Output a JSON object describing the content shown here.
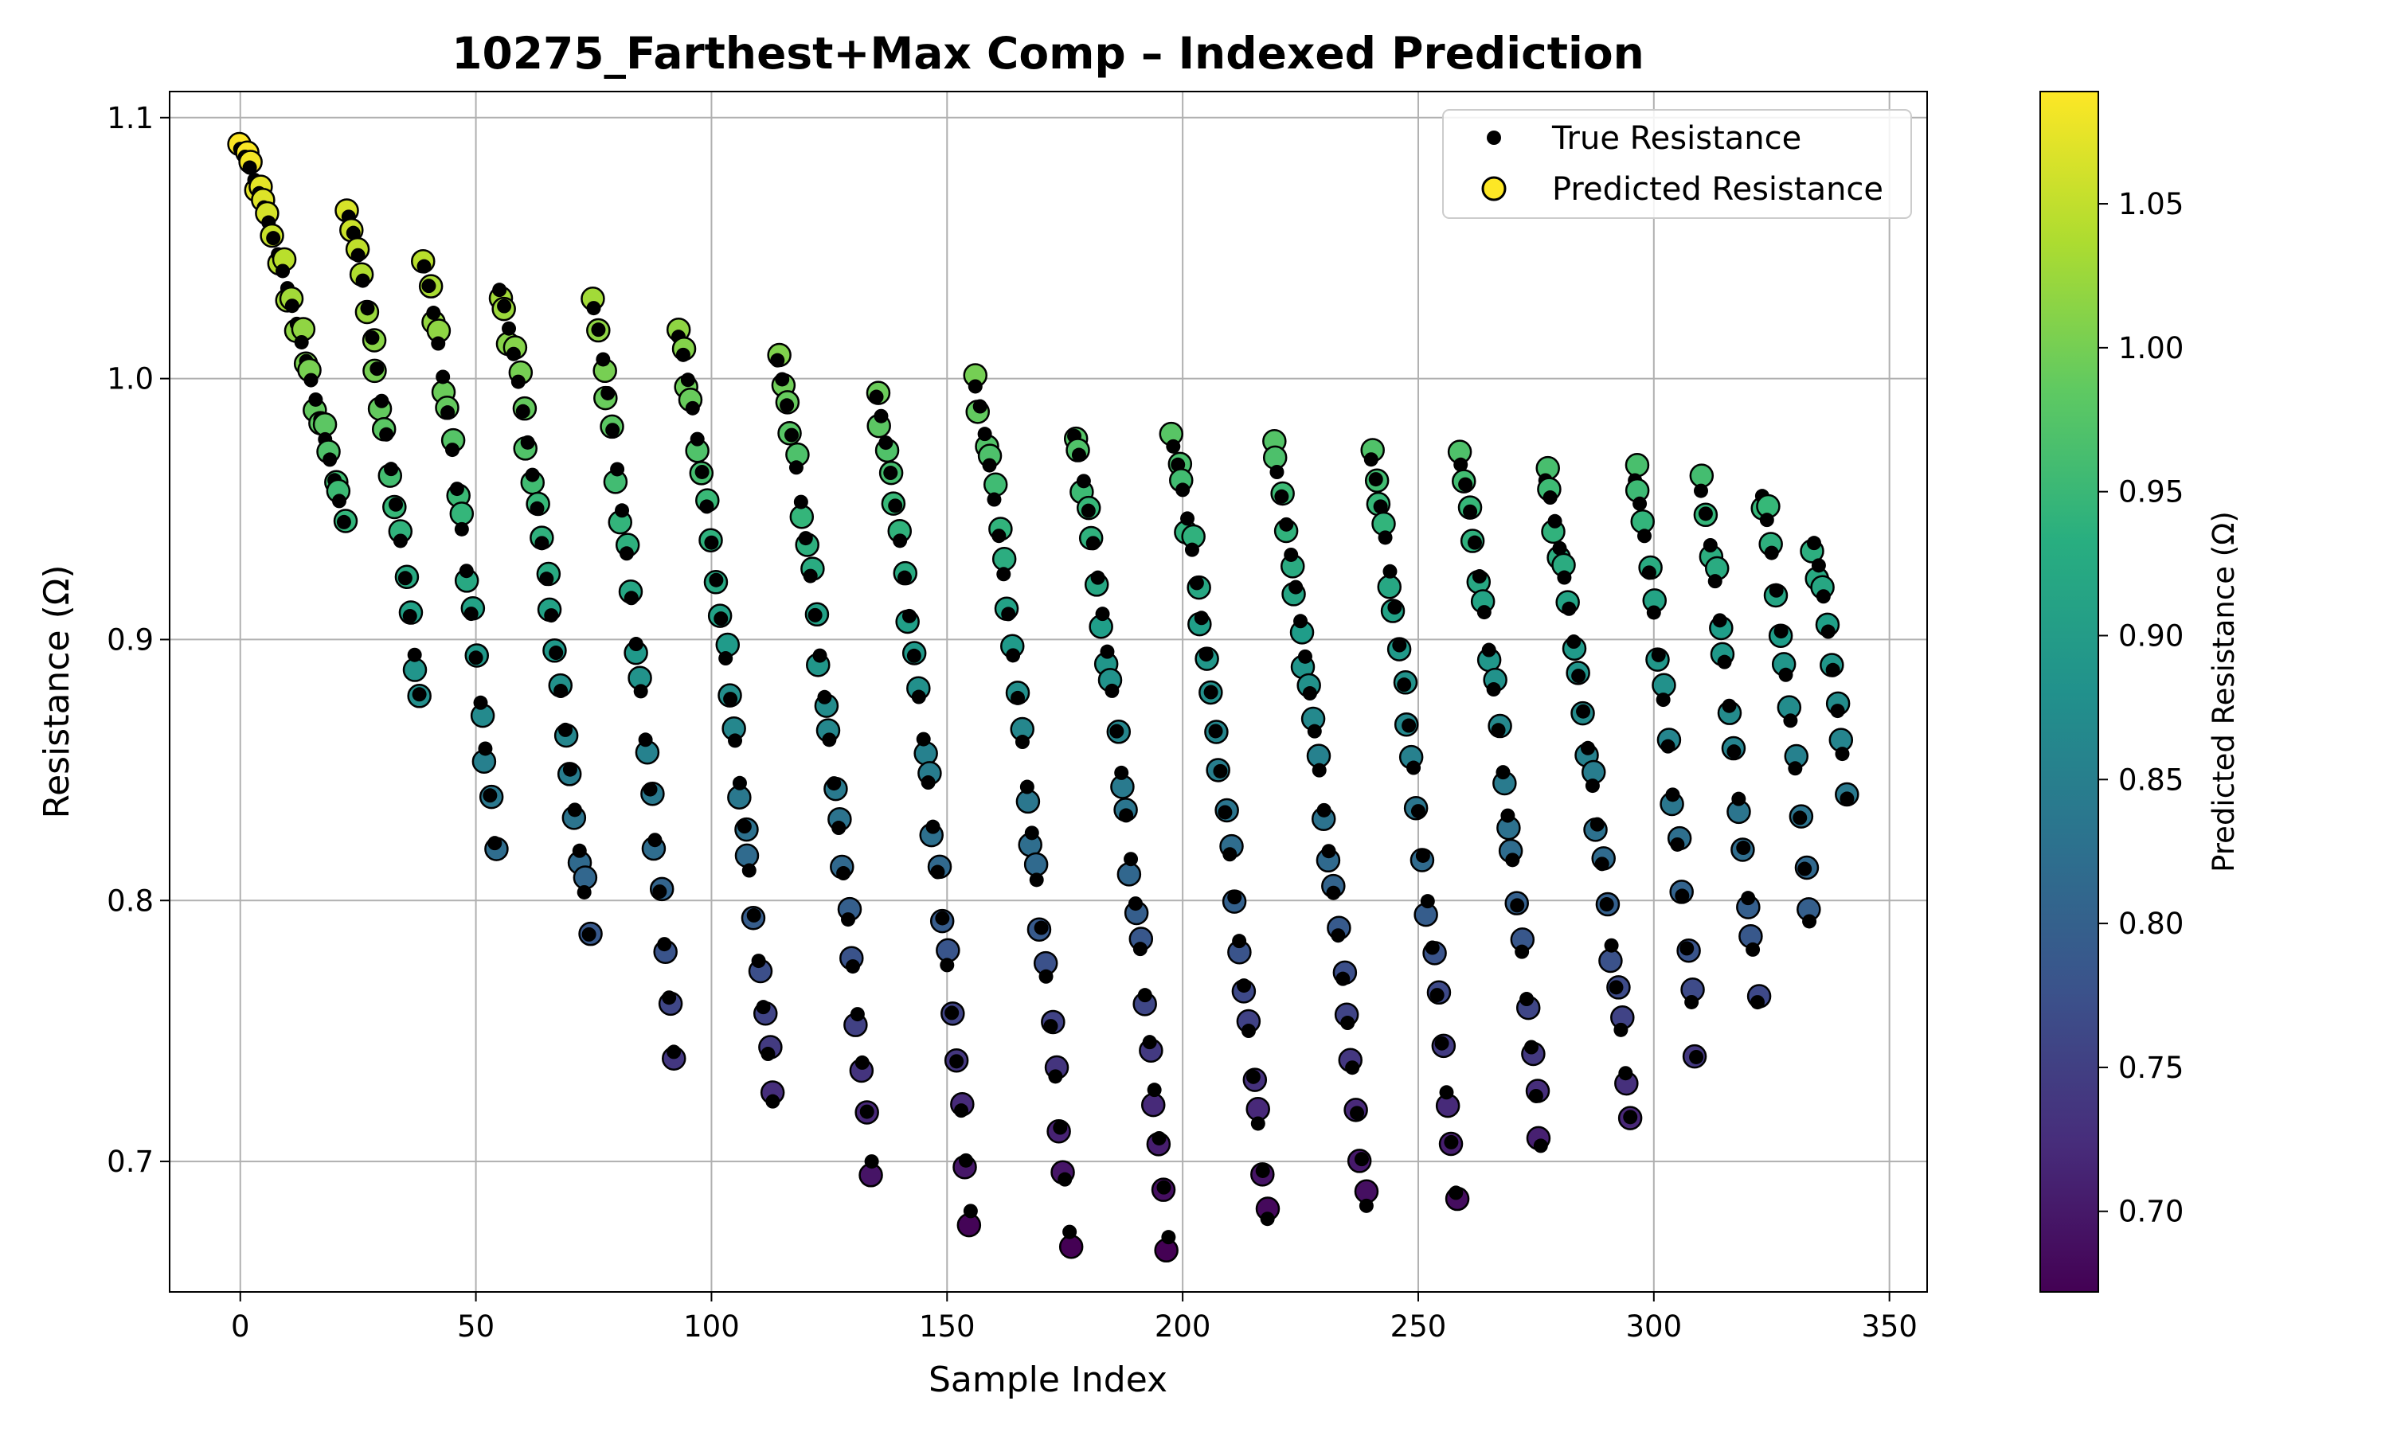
{
  "chart_data": {
    "type": "scatter",
    "title": "10275_Farthest+Max Comp – Indexed Prediction",
    "xlabel": "Sample Index",
    "ylabel": "Resistance (Ω)",
    "xlim": [
      -15,
      358
    ],
    "ylim": [
      0.65,
      1.11
    ],
    "x_ticks": [
      0,
      50,
      100,
      150,
      200,
      250,
      300,
      350
    ],
    "y_ticks": [
      0.7,
      0.8,
      0.9,
      1.0,
      1.1
    ],
    "x_tick_labels": [
      "0",
      "50",
      "100",
      "150",
      "200",
      "250",
      "300",
      "350"
    ],
    "y_tick_labels": [
      "0.7",
      "0.8",
      "0.9",
      "1.0",
      "1.1"
    ],
    "grid": true,
    "legend_position": "top-right",
    "colorbar": {
      "label": "Predicted Resistance (Ω)",
      "min": 0.672,
      "max": 1.089,
      "ticks": [
        0.7,
        0.75,
        0.8,
        0.85,
        0.9,
        0.95,
        1.0,
        1.05
      ],
      "tick_labels": [
        "0.70",
        "0.75",
        "0.80",
        "0.85",
        "0.90",
        "0.95",
        "1.00",
        "1.05"
      ],
      "colormap": "viridis"
    },
    "cycles": [
      {
        "start": 0,
        "top": 1.088,
        "bottom": 0.945
      },
      {
        "start": 23,
        "top": 1.062,
        "bottom": 0.879
      },
      {
        "start": 39,
        "top": 1.043,
        "bottom": 0.822
      },
      {
        "start": 55,
        "top": 1.034,
        "bottom": 0.787
      },
      {
        "start": 75,
        "top": 1.027,
        "bottom": 0.742
      },
      {
        "start": 93,
        "top": 1.016,
        "bottom": 0.723
      },
      {
        "start": 114,
        "top": 1.007,
        "bottom": 0.7
      },
      {
        "start": 135,
        "top": 0.993,
        "bottom": 0.681
      },
      {
        "start": 156,
        "top": 0.997,
        "bottom": 0.673
      },
      {
        "start": 177,
        "top": 0.978,
        "bottom": 0.671
      },
      {
        "start": 198,
        "top": 0.974,
        "bottom": 0.678
      },
      {
        "start": 219,
        "top": 0.971,
        "bottom": 0.683
      },
      {
        "start": 240,
        "top": 0.969,
        "bottom": 0.688
      },
      {
        "start": 259,
        "top": 0.967,
        "bottom": 0.706
      },
      {
        "start": 277,
        "top": 0.961,
        "bottom": 0.717
      },
      {
        "start": 296,
        "top": 0.961,
        "bottom": 0.74
      },
      {
        "start": 310,
        "top": 0.957,
        "bottom": 0.761
      },
      {
        "start": 323,
        "top": 0.955,
        "bottom": 0.792
      },
      {
        "start": 334,
        "top": 0.937,
        "bottom": 0.839
      }
    ],
    "cycle_end": 342,
    "series": [
      {
        "name": "True Resistance",
        "marker": "small-black-dot"
      },
      {
        "name": "Predicted Resistance",
        "marker": "colored-circle-black-edge"
      }
    ]
  }
}
